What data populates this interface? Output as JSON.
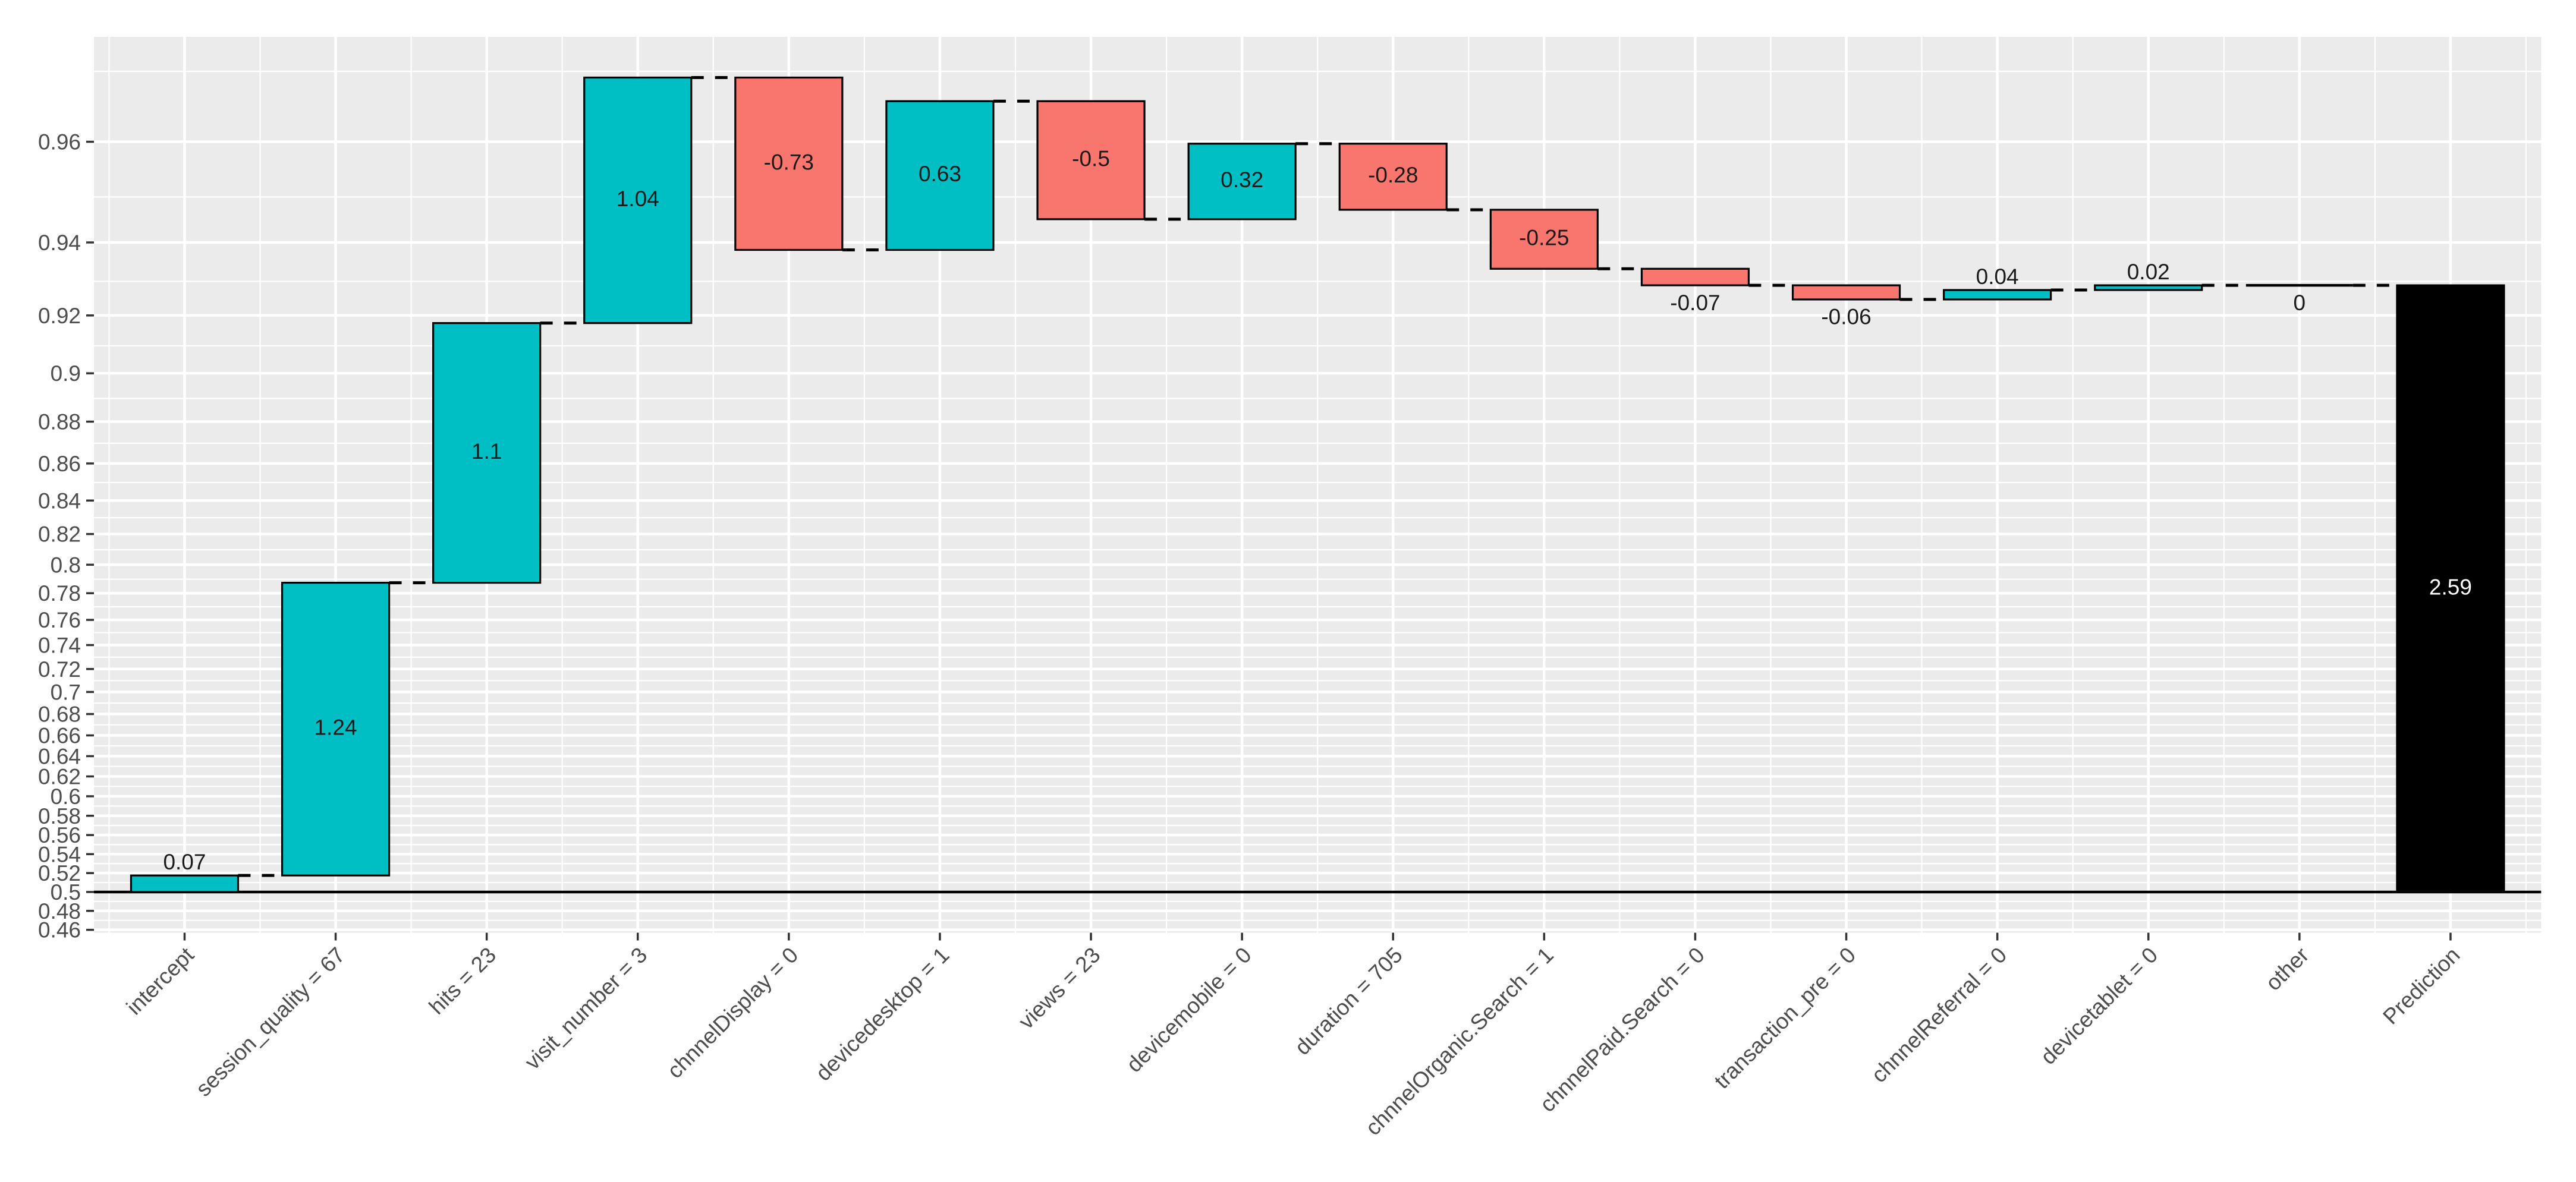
{
  "chart_data": {
    "type": "bar",
    "subtype": "waterfall-contribution-plot",
    "title": "",
    "legend": "none",
    "grid": "on",
    "panel_background": "#EBEBEB",
    "gridline_color": "#FFFFFF",
    "axis_text_color": "#4D4D4D",
    "tick_mark_color": "#333333",
    "value_label_color": "#1a1a1a",
    "final_label_color": "#FFFFFF",
    "colors": {
      "positive": "#00BFC4",
      "negative": "#F8766D",
      "final": "#000000",
      "zero": "#000000"
    },
    "y_axis": {
      "scale": "logit-probability",
      "baseline_value": 0.5,
      "logit_min": -0.1725,
      "logit_max": 3.6225,
      "ticks": [
        {
          "p": 0.96,
          "label": "0.96"
        },
        {
          "p": 0.94,
          "label": "0.94"
        },
        {
          "p": 0.92,
          "label": "0.92"
        },
        {
          "p": 0.9,
          "label": "0.9"
        },
        {
          "p": 0.88,
          "label": "0.88"
        },
        {
          "p": 0.86,
          "label": "0.86"
        },
        {
          "p": 0.84,
          "label": "0.84"
        },
        {
          "p": 0.82,
          "label": "0.82"
        },
        {
          "p": 0.8,
          "label": "0.8"
        },
        {
          "p": 0.78,
          "label": "0.78"
        },
        {
          "p": 0.76,
          "label": "0.76"
        },
        {
          "p": 0.74,
          "label": "0.74"
        },
        {
          "p": 0.72,
          "label": "0.72"
        },
        {
          "p": 0.7,
          "label": "0.7"
        },
        {
          "p": 0.68,
          "label": "0.68"
        },
        {
          "p": 0.66,
          "label": "0.66"
        },
        {
          "p": 0.64,
          "label": "0.64"
        },
        {
          "p": 0.62,
          "label": "0.62"
        },
        {
          "p": 0.6,
          "label": "0.6"
        },
        {
          "p": 0.58,
          "label": "0.58"
        },
        {
          "p": 0.56,
          "label": "0.56"
        },
        {
          "p": 0.54,
          "label": "0.54"
        },
        {
          "p": 0.52,
          "label": "0.52"
        },
        {
          "p": 0.5,
          "label": "0.5"
        },
        {
          "p": 0.48,
          "label": "0.48"
        },
        {
          "p": 0.46,
          "label": "0.46"
        }
      ],
      "minor_ticks_p": [
        0.47,
        0.49,
        0.51,
        0.53,
        0.55,
        0.57,
        0.59,
        0.61,
        0.63,
        0.65,
        0.67,
        0.69,
        0.71,
        0.73,
        0.75,
        0.77,
        0.79,
        0.81,
        0.83,
        0.85,
        0.87,
        0.89,
        0.91,
        0.93,
        0.95,
        0.97
      ]
    },
    "categories": [
      "intercept",
      "session_quality = 67",
      "hits = 23",
      "visit_number = 3",
      "chnnelDisplay = 0",
      "devicedesktop = 1",
      "views = 23",
      "devicemobile = 0",
      "duration = 705",
      "chnnelOrganic.Search = 1",
      "chnnelPaid.Search = 0",
      "transaction_pre = 0",
      "chnnelReferral = 0",
      "devicetablet = 0",
      "other",
      "Prediction"
    ],
    "bars": [
      {
        "label": "intercept",
        "value": 0.07,
        "display": "0.07",
        "kind": "contribution"
      },
      {
        "label": "session_quality = 67",
        "value": 1.24,
        "display": "1.24",
        "kind": "contribution"
      },
      {
        "label": "hits = 23",
        "value": 1.1,
        "display": "1.1",
        "kind": "contribution"
      },
      {
        "label": "visit_number = 3",
        "value": 1.04,
        "display": "1.04",
        "kind": "contribution"
      },
      {
        "label": "chnnelDisplay = 0",
        "value": -0.73,
        "display": "-0.73",
        "kind": "contribution"
      },
      {
        "label": "devicedesktop = 1",
        "value": 0.63,
        "display": "0.63",
        "kind": "contribution"
      },
      {
        "label": "views = 23",
        "value": -0.5,
        "display": "-0.5",
        "kind": "contribution"
      },
      {
        "label": "devicemobile = 0",
        "value": 0.32,
        "display": "0.32",
        "kind": "contribution"
      },
      {
        "label": "duration = 705",
        "value": -0.28,
        "display": "-0.28",
        "kind": "contribution"
      },
      {
        "label": "chnnelOrganic.Search = 1",
        "value": -0.25,
        "display": "-0.25",
        "kind": "contribution"
      },
      {
        "label": "chnnelPaid.Search = 0",
        "value": -0.07,
        "display": "-0.07",
        "kind": "contribution"
      },
      {
        "label": "transaction_pre = 0",
        "value": -0.06,
        "display": "-0.06",
        "kind": "contribution"
      },
      {
        "label": "chnnelReferral = 0",
        "value": 0.04,
        "display": "0.04",
        "kind": "contribution"
      },
      {
        "label": "devicetablet = 0",
        "value": 0.02,
        "display": "0.02",
        "kind": "contribution"
      },
      {
        "label": "other",
        "value": 0,
        "display": "0",
        "kind": "zero"
      },
      {
        "label": "Prediction",
        "value": null,
        "display": "2.59",
        "kind": "final"
      }
    ]
  }
}
